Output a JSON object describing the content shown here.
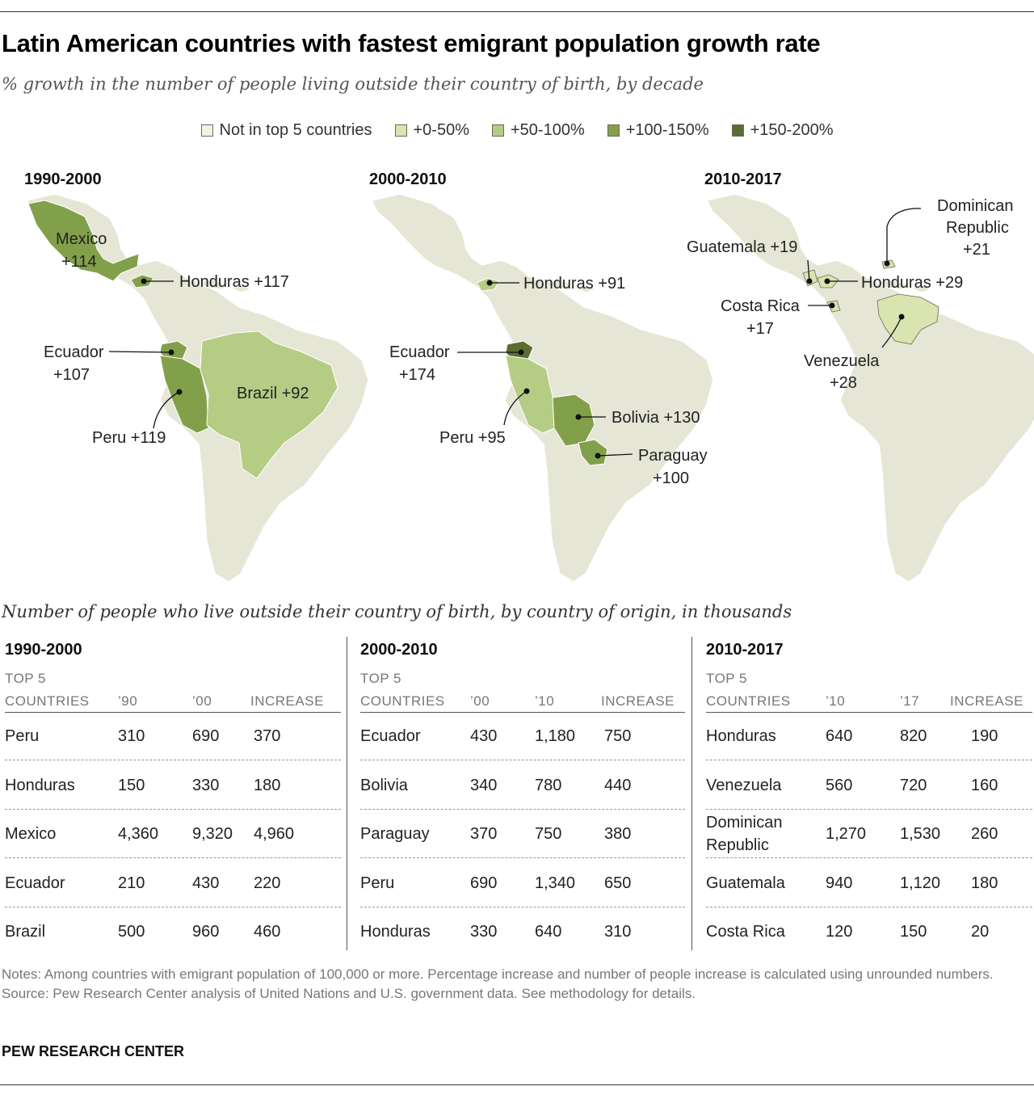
{
  "title": "Latin American countries with fastest emigrant population growth rate",
  "subtitle": "% growth in the number of people living outside their country of birth, by decade",
  "colors": {
    "land": "#e6e6d6",
    "bin0": "#f2f2e4",
    "bin1": "#d9e4b0",
    "bin2": "#b5cc85",
    "bin3": "#82a04a",
    "bin4": "#5a6e32"
  },
  "legend": [
    {
      "label": "Not in top 5 countries",
      "color": "#f2f2e4"
    },
    {
      "label": "+0-50%",
      "color": "#d9e4b0"
    },
    {
      "label": "+50-100%",
      "color": "#b5cc85"
    },
    {
      "label": "+100-150%",
      "color": "#82a04a"
    },
    {
      "label": "+150-200%",
      "color": "#5a6e32"
    }
  ],
  "maps": [
    {
      "period": "1990-2000",
      "labels": {
        "mexico_a": "Mexico",
        "mexico_b": "+114",
        "honduras": "Honduras +117",
        "ecuador_a": "Ecuador",
        "ecuador_b": "+107",
        "brazil": "Brazil +92",
        "peru": "Peru +119"
      }
    },
    {
      "period": "2000-2010",
      "labels": {
        "honduras": "Honduras +91",
        "ecuador_a": "Ecuador",
        "ecuador_b": "+174",
        "peru": "Peru +95",
        "bolivia": "Bolivia +130",
        "paraguay_a": "Paraguay",
        "paraguay_b": "+100"
      }
    },
    {
      "period": "2010-2017",
      "labels": {
        "dominican_a": "Dominican",
        "dominican_b": "Republic",
        "dominican_c": "+21",
        "guatemala": "Guatemala +19",
        "honduras": "Honduras +29",
        "costarica_a": "Costa Rica",
        "costarica_b": "+17",
        "venezuela_a": "Venezuela",
        "venezuela_b": "+28"
      }
    }
  ],
  "table_caption": "Number of people who live outside their country of birth, by country of origin, in thousands",
  "tables": [
    {
      "period": "1990-2000",
      "headers": {
        "top5": "TOP 5",
        "countries": "COUNTRIES",
        "start": "’90",
        "end": "’00",
        "increase": "INCREASE"
      },
      "rows": [
        {
          "country": "Peru",
          "start": "310",
          "end": "690",
          "increase": "370"
        },
        {
          "country": "Honduras",
          "start": "150",
          "end": "330",
          "increase": "180"
        },
        {
          "country": "Mexico",
          "start": "4,360",
          "end": "9,320",
          "increase": "4,960"
        },
        {
          "country": "Ecuador",
          "start": "210",
          "end": "430",
          "increase": "220"
        },
        {
          "country": "Brazil",
          "start": "500",
          "end": "960",
          "increase": "460"
        }
      ]
    },
    {
      "period": "2000-2010",
      "headers": {
        "top5": "TOP 5",
        "countries": "COUNTRIES",
        "start": "’00",
        "end": "’10",
        "increase": "INCREASE"
      },
      "rows": [
        {
          "country": "Ecuador",
          "start": "430",
          "end": "1,180",
          "increase": "750"
        },
        {
          "country": "Bolivia",
          "start": "340",
          "end": "780",
          "increase": "440"
        },
        {
          "country": "Paraguay",
          "start": "370",
          "end": "750",
          "increase": "380"
        },
        {
          "country": "Peru",
          "start": "690",
          "end": "1,340",
          "increase": "650"
        },
        {
          "country": "Honduras",
          "start": "330",
          "end": "640",
          "increase": "310"
        }
      ]
    },
    {
      "period": "2010-2017",
      "headers": {
        "top5": "TOP 5",
        "countries": "COUNTRIES",
        "start": "’10",
        "end": "’17",
        "increase": "INCREASE"
      },
      "rows": [
        {
          "country": "Honduras",
          "start": "640",
          "end": "820",
          "increase": "190"
        },
        {
          "country": "Venezuela",
          "start": "560",
          "end": "720",
          "increase": "160"
        },
        {
          "country": "Dominican\nRepublic",
          "start": "1,270",
          "end": "1,530",
          "increase": "260"
        },
        {
          "country": "Guatemala",
          "start": "940",
          "end": "1,120",
          "increase": "180"
        },
        {
          "country": "Costa Rica",
          "start": "120",
          "end": "150",
          "increase": "20"
        }
      ]
    }
  ],
  "notes": "Notes: Among countries with emigrant population of 100,000 or more. Percentage increase and number of people increase is calculated using unrounded numbers.",
  "source": "Source: Pew Research Center analysis of United Nations and U.S. government data. See methodology for details.",
  "brand": "PEW RESEARCH CENTER"
}
